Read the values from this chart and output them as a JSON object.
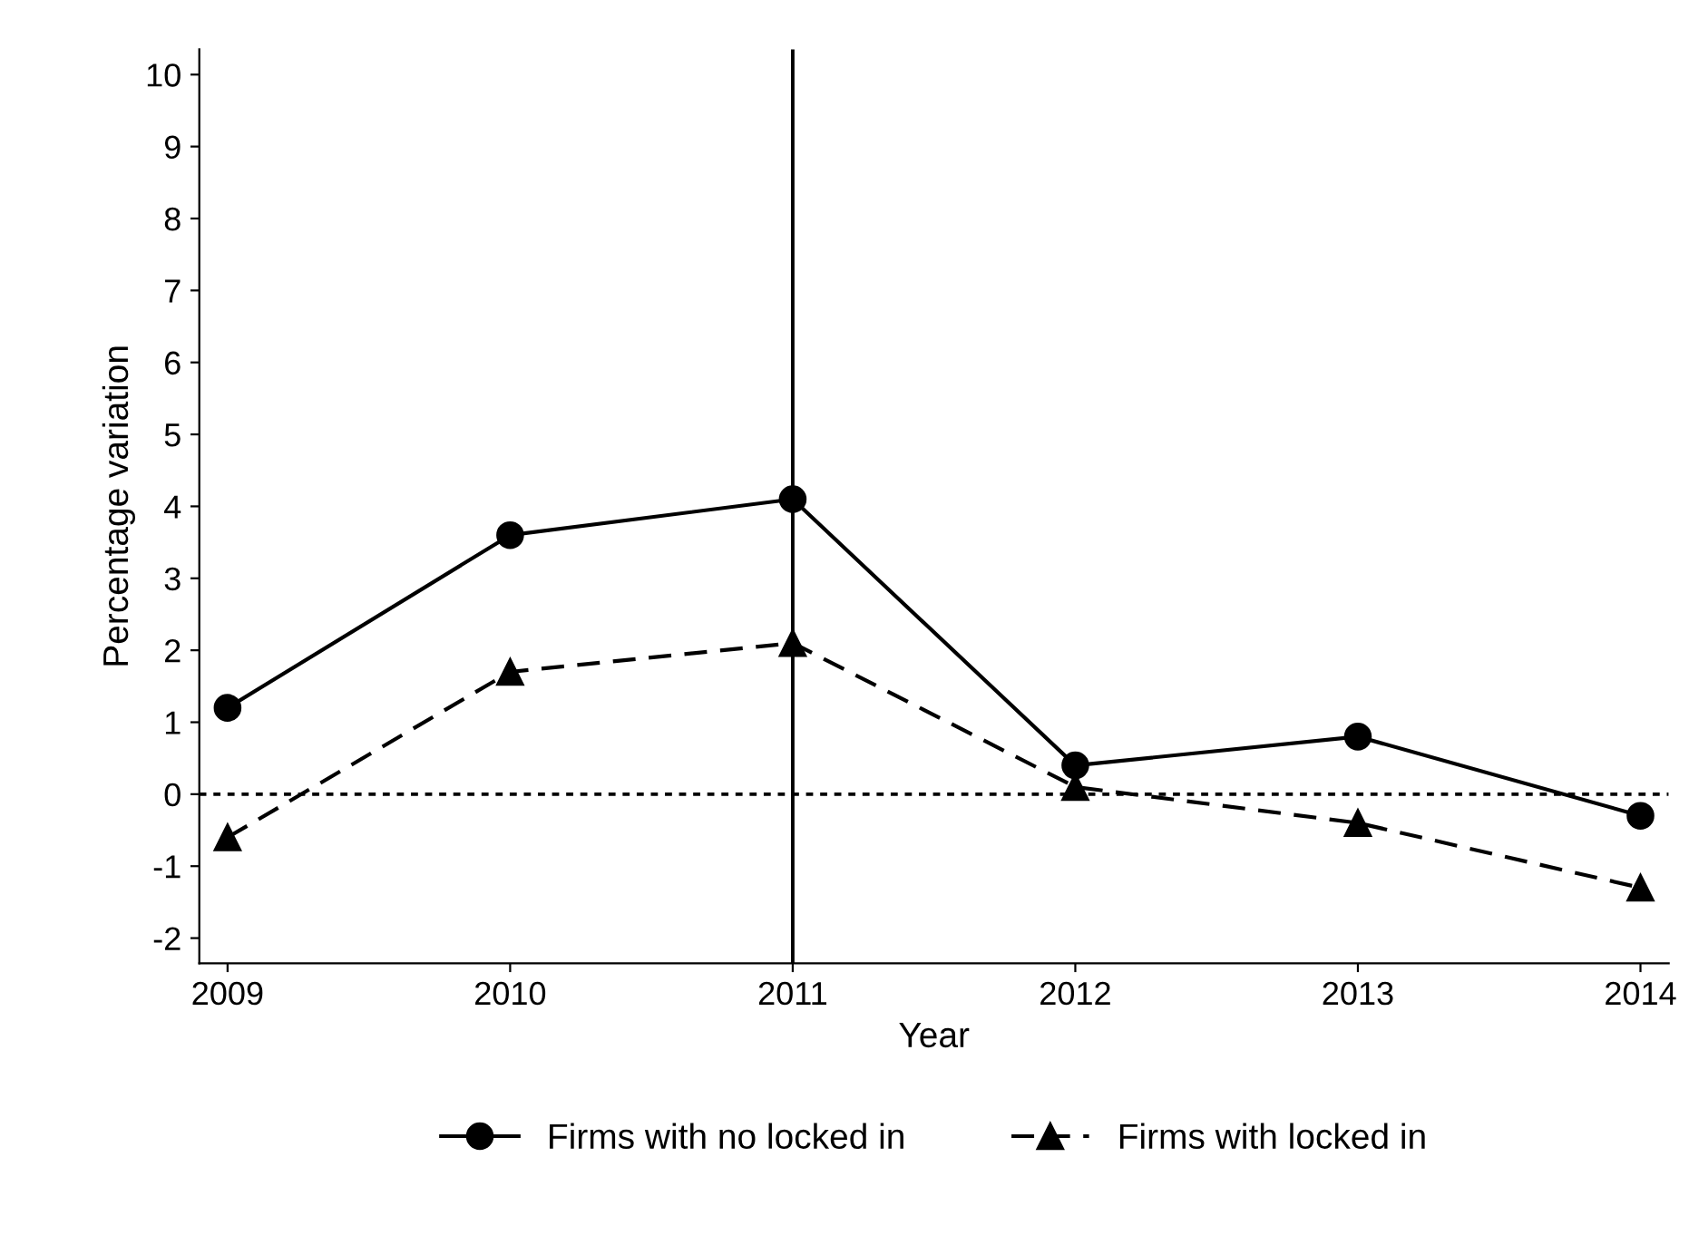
{
  "chart_data": {
    "type": "line",
    "xlabel": "Year",
    "ylabel": "Percentage variation",
    "x": [
      2009,
      2010,
      2011,
      2012,
      2013,
      2014
    ],
    "series": [
      {
        "name": "Firms with no locked in",
        "color": "#000000",
        "marker": "circle",
        "line_style": "solid",
        "values": [
          1.2,
          3.6,
          4.1,
          0.4,
          0.8,
          -0.3
        ]
      },
      {
        "name": "Firms with locked in",
        "color": "#000000",
        "marker": "triangle",
        "line_style": "dashed",
        "values": [
          -0.6,
          1.7,
          2.1,
          0.1,
          -0.4,
          -1.3
        ]
      }
    ],
    "xlim": [
      2008.9,
      2014.1
    ],
    "xticks": [
      2009,
      2010,
      2011,
      2012,
      2013,
      2014
    ],
    "ylim": [
      -2.35,
      10.35
    ],
    "yticks": [
      -2,
      -1,
      0,
      1,
      2,
      3,
      4,
      5,
      6,
      7,
      8,
      9,
      10
    ],
    "ref_lines": [
      {
        "axis": "y",
        "value": 0,
        "color": "#000000",
        "line_style": "dotted"
      },
      {
        "axis": "x",
        "value": 2011,
        "color": "#000000",
        "line_style": "solid"
      }
    ],
    "grid": false,
    "legend": "bottom"
  }
}
